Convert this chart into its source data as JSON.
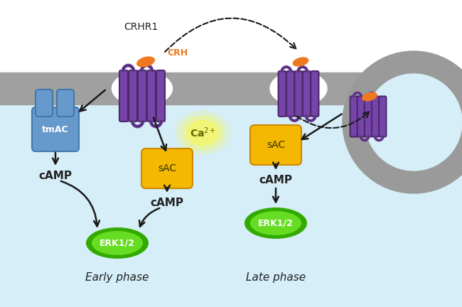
{
  "bg_top": "#ffffff",
  "bg_bottom": "#d6eef8",
  "membrane_color": "#a0a0a0",
  "receptor_color": "#7744aa",
  "receptor_outline": "#4a2a6a",
  "crh_color": "#f07820",
  "tmac_color_light": "#6699cc",
  "tmac_color_dark": "#4477aa",
  "sac_color": "#f5b800",
  "erk_color_center": "#66dd22",
  "erk_color_edge": "#33aa00",
  "ca_color": "#f8f855",
  "arrow_color": "#1a1a1a",
  "text_dark": "#222222",
  "crhr1_label": "CRHR1",
  "crh_label": "CRH",
  "tmac_label": "tmAC",
  "sac_label": "sAC",
  "camp_label": "cAMP",
  "erk_label": "ERK1/2",
  "ca_label": "Ca",
  "early_label": "Early phase",
  "late_label": "Late phase",
  "endosome_outer": "#9a9a9a",
  "endosome_inner": "#d6eef8"
}
